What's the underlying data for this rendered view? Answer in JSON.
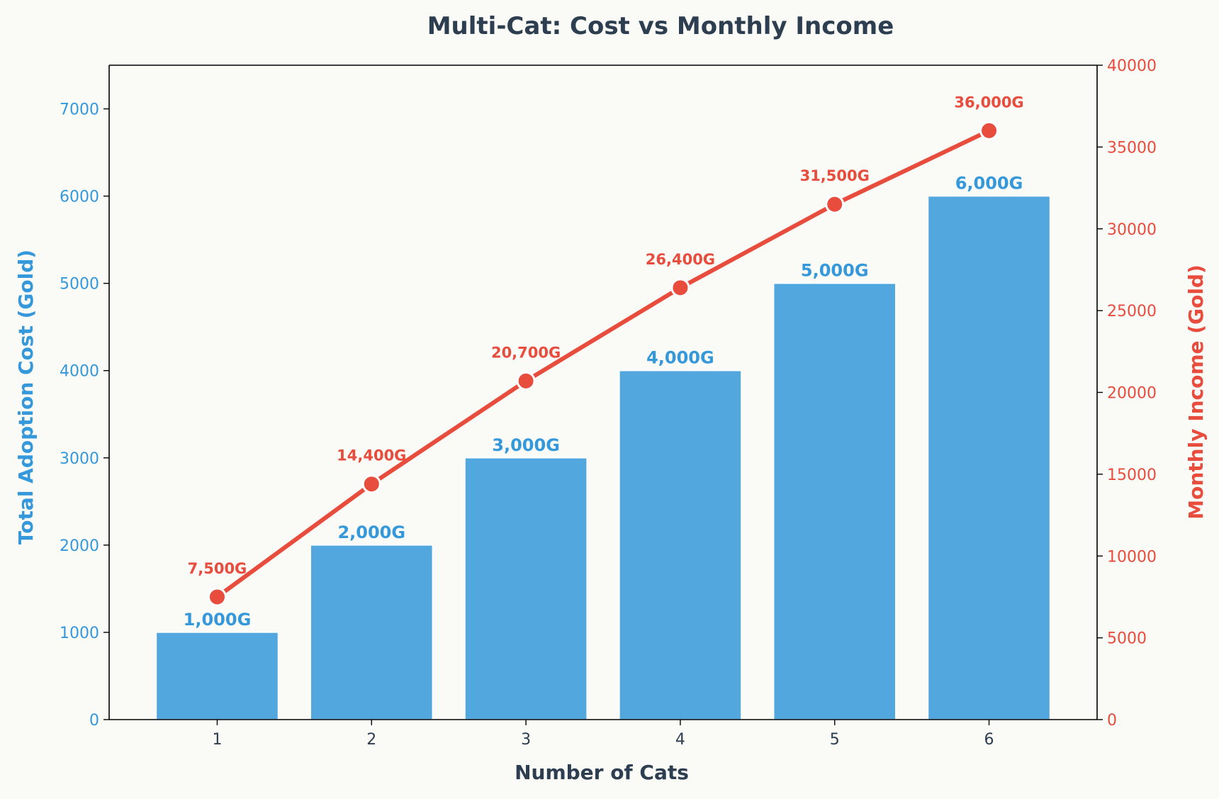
{
  "chart_data": {
    "type": "bar",
    "title": "Multi-Cat: Cost vs Monthly Income",
    "xlabel": "Number of Cats",
    "ylabel": "Total Adoption Cost (Gold)",
    "y2label": "Monthly Income (Gold)",
    "categories": [
      "1",
      "2",
      "3",
      "4",
      "5",
      "6"
    ],
    "ylim": [
      0,
      7500
    ],
    "y2lim": [
      0,
      40000
    ],
    "yticks": [
      "0",
      "1000",
      "2000",
      "3000",
      "4000",
      "5000",
      "6000",
      "7000"
    ],
    "y2ticks": [
      "0",
      "5000",
      "10000",
      "15000",
      "20000",
      "25000",
      "30000",
      "35000",
      "40000"
    ],
    "grid": false,
    "series": [
      {
        "kind": "bar",
        "axis": "left",
        "values": [
          1000,
          2000,
          3000,
          4000,
          5000,
          6000
        ],
        "labels": [
          "1,000G",
          "2,000G",
          "3,000G",
          "4,000G",
          "5,000G",
          "6,000G"
        ],
        "color": "#3498db"
      },
      {
        "kind": "line",
        "axis": "right",
        "values": [
          7500,
          14400,
          20700,
          26400,
          31500,
          36000
        ],
        "labels": [
          "7,500G",
          "14,400G",
          "20,700G",
          "26,400G",
          "31,500G",
          "36,000G"
        ],
        "color": "#e74c3c"
      }
    ]
  },
  "colors": {
    "background": "#fafaf7",
    "text_dark": "#2c3e50",
    "bar": "#3498db",
    "line": "#e74c3c"
  }
}
